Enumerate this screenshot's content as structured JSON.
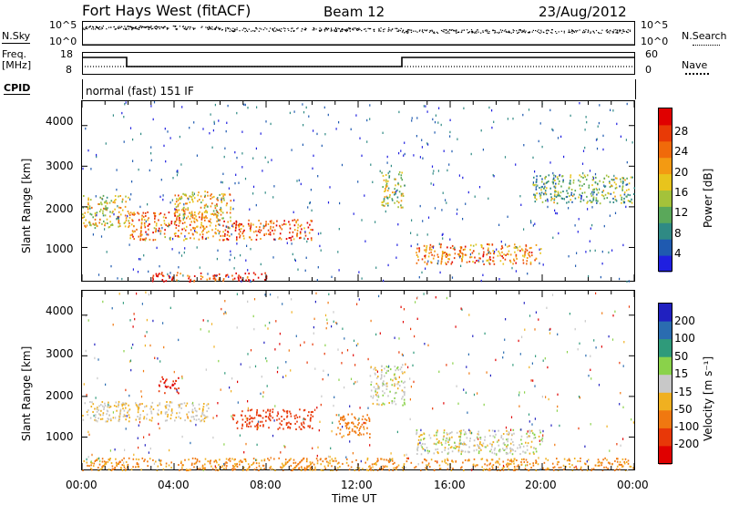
{
  "header": {
    "radar": "Fort Hays West (fitACF)",
    "beam": "Beam 12",
    "date": "23/Aug/2012"
  },
  "strip": {
    "nsky_label": "N.Sky",
    "nsky_ticks": [
      "10^5",
      "10^0"
    ],
    "nsearch_label": "N.Search",
    "freq_label_1": "Freq.",
    "freq_label_2": "[MHz]",
    "freq_ticks": [
      "18",
      "8"
    ],
    "nave_label": "Nave",
    "nave_ticks": [
      "60",
      "0"
    ],
    "cpid_label": "CPID",
    "cpid_value": "normal (fast) 151 IF"
  },
  "chart_data": [
    {
      "type": "heatmap",
      "quantity": "Power",
      "ylabel": "Slant Range [km]",
      "ylim": [
        180,
        4600
      ],
      "yticks": [
        "1000",
        "2000",
        "3000",
        "4000"
      ],
      "xlim": [
        "00:00",
        "24:00"
      ],
      "colorbar": {
        "label": "Power [dB]",
        "ticks": [
          "4",
          "8",
          "12",
          "16",
          "20",
          "24",
          "28"
        ],
        "colors": [
          "#1f1fe0",
          "#1f5ab0",
          "#2f8a84",
          "#5aa85a",
          "#a4c23a",
          "#e8c41c",
          "#f39a12",
          "#f06a0a",
          "#e83a06",
          "#e00000"
        ]
      },
      "features": [
        {
          "t_start_h": 0.0,
          "t_end_h": 2.0,
          "range_km": [
            1500,
            2300
          ],
          "power_db": 16
        },
        {
          "t_start_h": 2.0,
          "t_end_h": 6.0,
          "range_km": [
            1200,
            1900
          ],
          "power_db": 22
        },
        {
          "t_start_h": 4.0,
          "t_end_h": 6.5,
          "range_km": [
            1700,
            2400
          ],
          "power_db": 18
        },
        {
          "t_start_h": 6.0,
          "t_end_h": 10.0,
          "range_km": [
            1200,
            1700
          ],
          "power_db": 24
        },
        {
          "t_start_h": 3.0,
          "t_end_h": 8.0,
          "range_km": [
            180,
            400
          ],
          "power_db": 26
        },
        {
          "t_start_h": 13.0,
          "t_end_h": 14.0,
          "range_km": [
            2000,
            2900
          ],
          "power_db": 14
        },
        {
          "t_start_h": 14.5,
          "t_end_h": 20.0,
          "range_km": [
            600,
            1100
          ],
          "power_db": 22
        },
        {
          "t_start_h": 19.5,
          "t_end_h": 24.0,
          "range_km": [
            2100,
            2800
          ],
          "power_db": 12
        }
      ]
    },
    {
      "type": "heatmap",
      "quantity": "Velocity",
      "ylabel": "Slant Range [km]",
      "ylim": [
        180,
        4600
      ],
      "yticks": [
        "1000",
        "2000",
        "3000",
        "4000"
      ],
      "xticks": [
        "00:00",
        "04:00",
        "08:00",
        "12:00",
        "16:00",
        "20:00",
        "00:00"
      ],
      "xlabel": "Time UT",
      "colorbar": {
        "label": "Velocity [m s⁻¹]",
        "ticks": [
          "200",
          "100",
          "50",
          "15",
          "-15",
          "-50",
          "-100",
          "-200"
        ],
        "colors": [
          "#2020c0",
          "#2a6cb0",
          "#2f9a7a",
          "#8ad24a",
          "#c8c8c8",
          "#f0b020",
          "#f07810",
          "#e83808",
          "#e00000"
        ]
      },
      "features": [
        {
          "t_start_h": 0.0,
          "t_end_h": 5.5,
          "range_km": [
            1400,
            1900
          ],
          "velocity_ms": -15
        },
        {
          "t_start_h": 3.3,
          "t_end_h": 4.2,
          "range_km": [
            2100,
            2500
          ],
          "velocity_ms": -200
        },
        {
          "t_start_h": 6.5,
          "t_end_h": 10.0,
          "range_km": [
            1200,
            1700
          ],
          "velocity_ms": -150
        },
        {
          "t_start_h": 11.0,
          "t_end_h": 12.5,
          "range_km": [
            1000,
            1600
          ],
          "velocity_ms": -80
        },
        {
          "t_start_h": 12.5,
          "t_end_h": 14.0,
          "range_km": [
            1800,
            2800
          ],
          "velocity_ms": 0
        },
        {
          "t_start_h": 14.5,
          "t_end_h": 20.0,
          "range_km": [
            600,
            1200
          ],
          "velocity_ms": 0
        },
        {
          "t_start_h": 0.0,
          "t_end_h": 24.0,
          "range_km": [
            180,
            500
          ],
          "velocity_ms": -60
        }
      ]
    }
  ]
}
